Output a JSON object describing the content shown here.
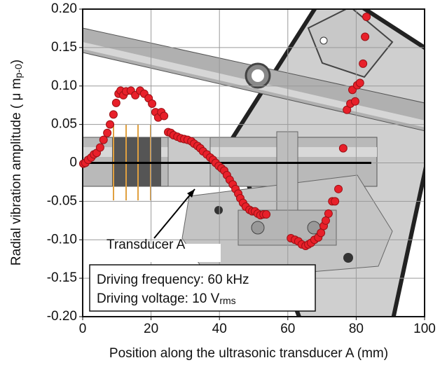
{
  "chart_data": {
    "type": "scatter",
    "xlabel": "Position along the ultrasonic transducer A (mm)",
    "ylabel": "Radial vibration amplitude ( μ m",
    "ylabel_sub": "p-0",
    "ylabel_end": ")",
    "annotation": "Transducer A",
    "note_frequency": "Driving frequency: 60 kHz",
    "note_voltage": "Driving voltage: 10 V",
    "note_voltage_sub": "rms",
    "color": "#e8202a",
    "xlim": [
      0,
      100
    ],
    "xticks": [
      0,
      20,
      40,
      60,
      80,
      100
    ],
    "ylim": [
      -0.2,
      0.2
    ],
    "yticks": [
      {
        "value": -0.2,
        "label": "-0.20"
      },
      -0.15,
      {
        "value": -0.1,
        "label": "-0.10"
      },
      -0.05,
      0,
      0.05,
      {
        "value": 0.1,
        "label": "0.10"
      },
      0.15,
      {
        "value": 0.2,
        "label": "0.20"
      }
    ],
    "grid": true,
    "x": [
      0.2,
      0.8,
      1.6,
      2.5,
      3.3,
      4.1,
      5.1,
      6.1,
      7.2,
      8.0,
      9.0,
      9.8,
      10.5,
      11.1,
      11.9,
      12.7,
      14.1,
      15.4,
      16.8,
      18.0,
      19.3,
      20.3,
      21.3,
      22.1,
      23.0,
      23.8,
      25.0,
      25.8,
      26.6,
      27.7,
      28.7,
      29.7,
      30.7,
      31.8,
      32.6,
      33.6,
      34.4,
      35.2,
      36.3,
      37.3,
      38.1,
      38.9,
      39.8,
      40.6,
      41.4,
      42.2,
      43.0,
      43.9,
      44.7,
      45.5,
      46.1,
      46.9,
      47.7,
      48.8,
      49.6,
      50.4,
      51.2,
      52.0,
      52.9,
      53.7,
      60.9,
      62.1,
      63.1,
      64.1,
      65.2,
      66.0,
      66.8,
      67.8,
      68.9,
      69.7,
      70.5,
      71.1,
      71.9,
      73.0,
      73.8,
      74.8,
      76.2,
      77.3,
      78.3,
      78.9,
      79.7,
      80.3,
      81.1,
      82.0,
      82.6,
      83.0
    ],
    "values": [
      -0.001,
      0.0,
      0.004,
      0.007,
      0.011,
      0.013,
      0.02,
      0.03,
      0.039,
      0.05,
      0.063,
      0.078,
      0.09,
      0.094,
      0.088,
      0.093,
      0.094,
      0.088,
      0.094,
      0.09,
      0.084,
      0.077,
      0.066,
      0.059,
      0.066,
      0.061,
      0.04,
      0.039,
      0.036,
      0.034,
      0.032,
      0.031,
      0.03,
      0.028,
      0.025,
      0.022,
      0.019,
      0.015,
      0.011,
      0.007,
      0.004,
      0.0,
      -0.004,
      -0.007,
      -0.01,
      -0.016,
      -0.022,
      -0.028,
      -0.034,
      -0.04,
      -0.046,
      -0.052,
      -0.057,
      -0.061,
      -0.063,
      -0.063,
      -0.066,
      -0.068,
      -0.067,
      -0.067,
      -0.098,
      -0.1,
      -0.102,
      -0.106,
      -0.108,
      -0.106,
      -0.104,
      -0.1,
      -0.097,
      -0.091,
      -0.082,
      -0.075,
      -0.066,
      -0.05,
      -0.05,
      -0.034,
      0.019,
      0.069,
      0.077,
      0.095,
      0.08,
      0.101,
      0.104,
      0.129,
      0.164,
      0.19
    ]
  }
}
